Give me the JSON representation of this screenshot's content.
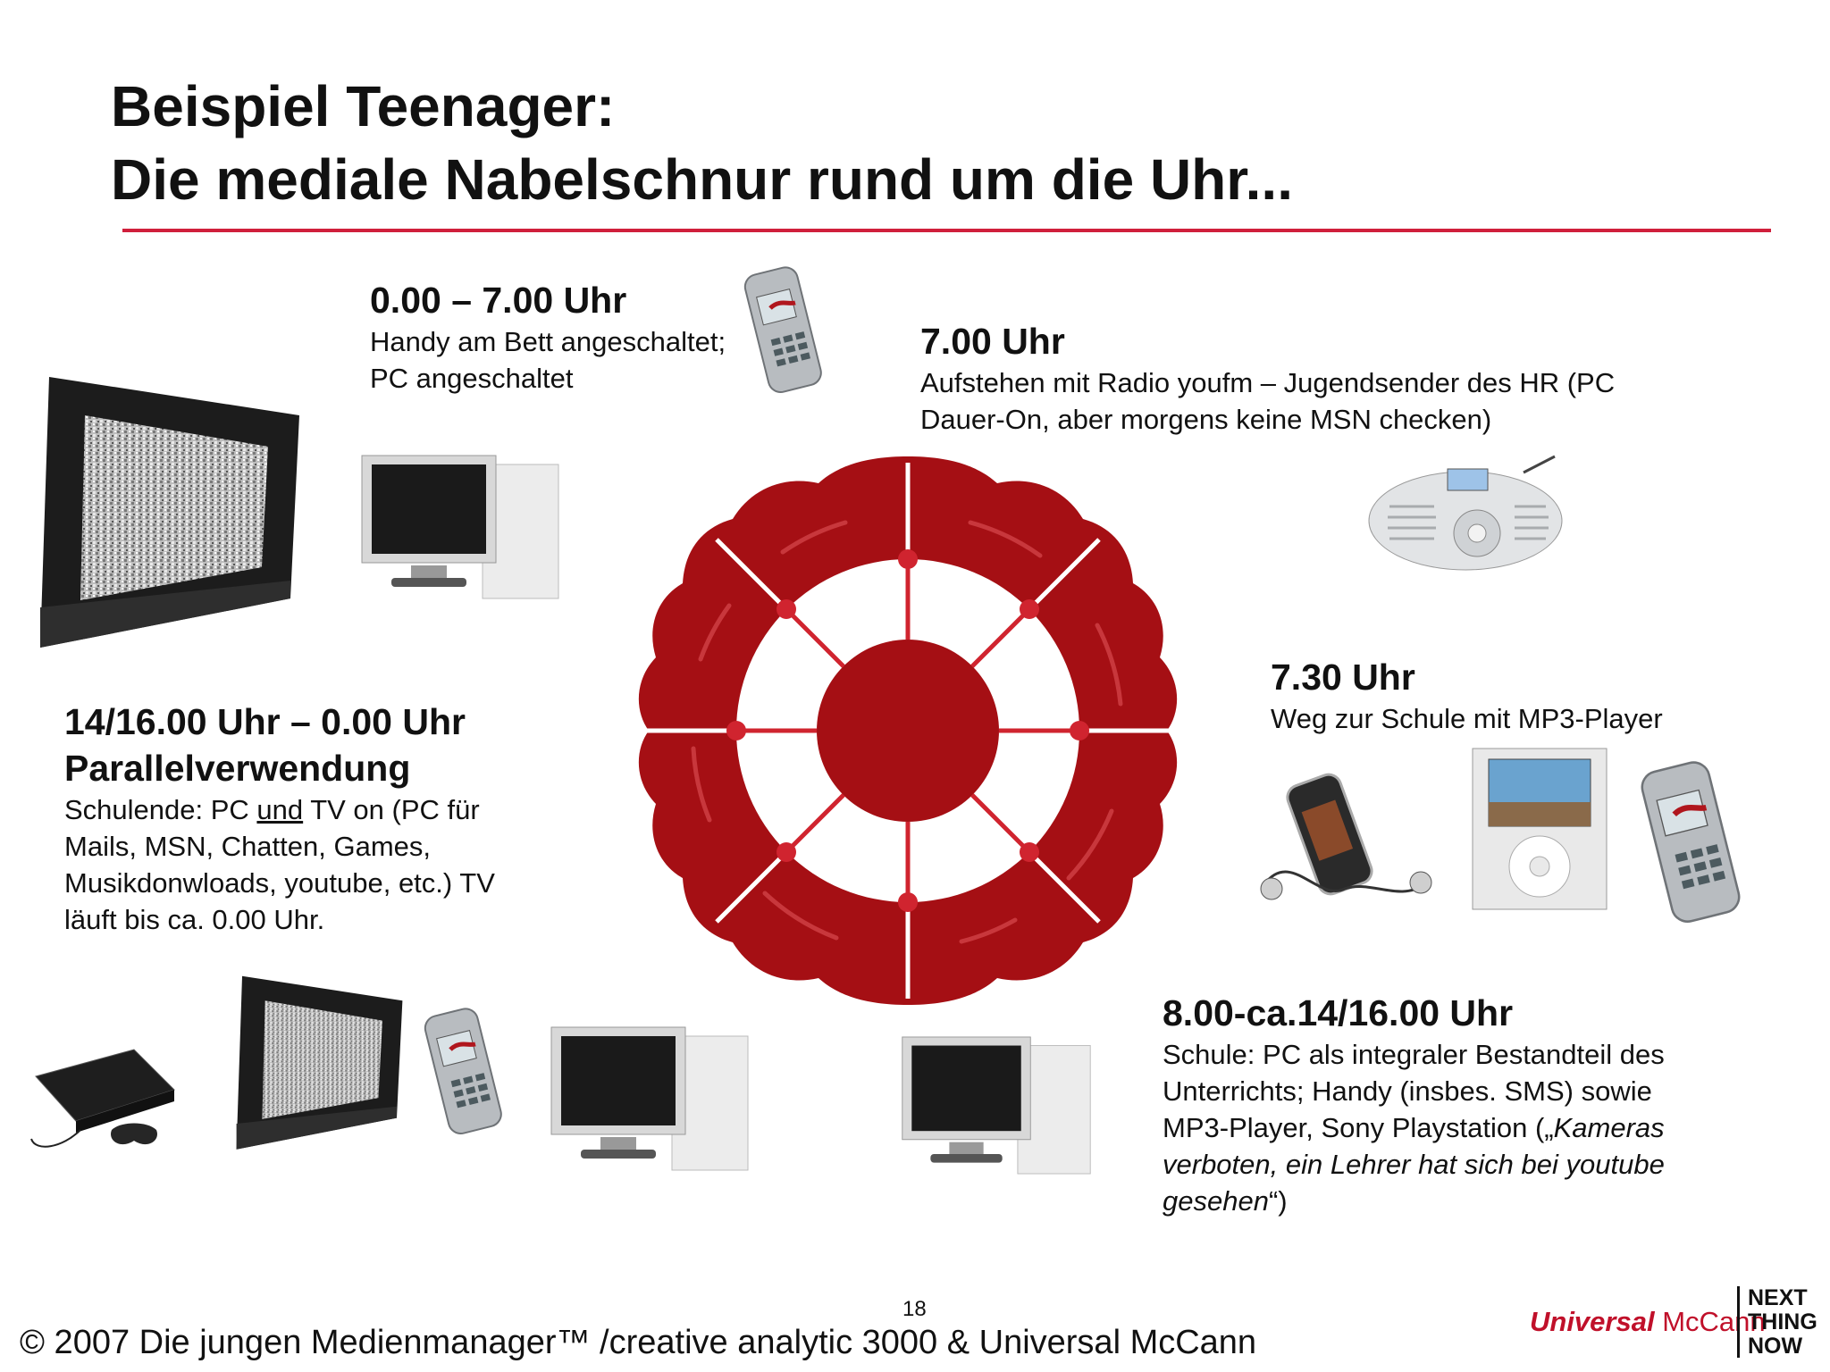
{
  "title": {
    "line1": "Beispiel Teenager:",
    "line2": "Die mediale Nabelschnur rund um die Uhr..."
  },
  "blocks": {
    "night": {
      "heading": "0.00 – 7.00 Uhr",
      "line1": "Handy am Bett angeschaltet;",
      "line2": "PC angeschaltet"
    },
    "morning": {
      "heading": "7.00 Uhr",
      "line1": "Aufstehen mit Radio youfm – Jugendsender des HR (PC",
      "line2": "Dauer-On, aber morgens keine MSN checken)"
    },
    "commute": {
      "heading": "7.30 Uhr",
      "line1": "Weg zur Schule mit MP3-Player"
    },
    "school": {
      "heading": "8.00-ca.14/16.00 Uhr",
      "line1": "Schule: PC als integraler Bestandteil des",
      "line2": "Unterrichts; Handy (insbes. SMS) sowie",
      "line3a": "MP3-Player, Sony Playstation („",
      "line3b": "Kameras",
      "line4": "verboten, ein Lehrer hat sich bei youtube",
      "line5a": "gesehen",
      "line5b": "“)"
    },
    "afternoon": {
      "heading1": "14/16.00 Uhr – 0.00 Uhr",
      "heading2": "Parallelverwendung",
      "line1a": "Schulende: PC ",
      "line1b": "und",
      "line1c": " TV on (PC für",
      "line2": "Mails, MSN, Chatten, Games,",
      "line3": "Musikdonwloads, youtube, etc.) TV",
      "line4": "läuft bis ca. 0.00 Uhr."
    }
  },
  "footer": {
    "page_number": "18",
    "copyright": "© 2007 Die jungen Medienmanager™ /creative analytic 3000 & Universal McCann",
    "brand_bold": "Universal",
    "brand_regular": " McCann",
    "tagline1": "NEXT",
    "tagline2": "THING",
    "tagline3": "NOW"
  },
  "colors": {
    "accent": "#d01f3c",
    "wheel": "#a50f14"
  }
}
